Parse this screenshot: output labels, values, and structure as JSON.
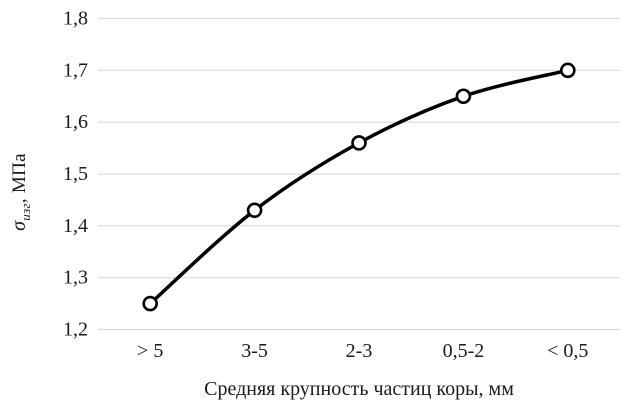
{
  "chart_data": {
    "type": "line",
    "categories": [
      "> 5",
      "3-5",
      "2-3",
      "0,5-2",
      "< 0,5"
    ],
    "values": [
      1.25,
      1.43,
      1.56,
      1.65,
      1.7
    ],
    "xlabel": "Средняя крупность частиц коры, мм",
    "ylabel": "σизг, МПа",
    "ylabel_sigma": "σ",
    "ylabel_sub": "изг",
    "ylabel_units": ", МПа",
    "ylim": [
      1.2,
      1.8
    ],
    "ytick_step": 0.1,
    "ytick_labels": [
      "1,2",
      "1,3",
      "1,4",
      "1,5",
      "1,6",
      "1,7",
      "1,8"
    ],
    "grid": true,
    "legend_position": "none",
    "colors": {
      "line": "#000000",
      "marker_fill": "#ffffff",
      "marker_stroke": "#000000",
      "gridline": "#d9d9d9",
      "text": "#1a1a1a",
      "background": "#ffffff"
    }
  }
}
